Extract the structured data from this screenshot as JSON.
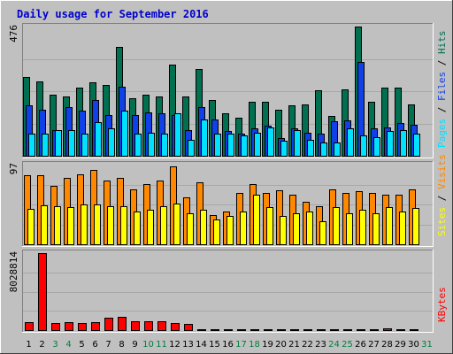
{
  "title": "Daily usage for September 2016",
  "colors": {
    "background": "#c0c0c0",
    "panel": "#c0c0c0",
    "grid": "#a8a8a8",
    "hits": "#007050",
    "files": "#1040e8",
    "pages": "#00e0ff",
    "visits": "#ff8800",
    "sites": "#ffff00",
    "kbytes": "#ff0000",
    "weekday_label": "#000000",
    "weekend_label": "#008040",
    "slash": "#000000"
  },
  "chart_data": [
    {
      "type": "bar",
      "panel": "hits-files-pages",
      "ymax_label": "476",
      "ylim": [
        0,
        476
      ],
      "right_legend": [
        "Pages",
        "Files",
        "Hits"
      ],
      "categories": [
        "1",
        "2",
        "3",
        "4",
        "5",
        "6",
        "7",
        "8",
        "9",
        "10",
        "11",
        "12",
        "13",
        "14",
        "15",
        "16",
        "17",
        "18",
        "19",
        "20",
        "21",
        "22",
        "23",
        "24",
        "25",
        "26",
        "27",
        "28",
        "29",
        "30",
        "31"
      ],
      "weekend_days": [
        "3",
        "4",
        "10",
        "11",
        "17",
        "18",
        "24",
        "25",
        "31"
      ],
      "series": [
        {
          "name": "Hits",
          "values": [
            290,
            275,
            225,
            220,
            250,
            272,
            260,
            400,
            212,
            225,
            220,
            335,
            218,
            320,
            205,
            158,
            140,
            200,
            200,
            168,
            185,
            190,
            240,
            148,
            245,
            475,
            200,
            250,
            250,
            190,
            0
          ]
        },
        {
          "name": "Files",
          "values": [
            185,
            170,
            95,
            180,
            165,
            205,
            150,
            255,
            150,
            160,
            155,
            150,
            95,
            180,
            135,
            90,
            80,
            100,
            112,
            65,
            100,
            85,
            82,
            128,
            130,
            345,
            100,
            105,
            120,
            115,
            0
          ]
        },
        {
          "name": "Pages",
          "values": [
            82,
            80,
            95,
            95,
            82,
            125,
            100,
            165,
            80,
            85,
            80,
            155,
            60,
            135,
            80,
            80,
            76,
            85,
            105,
            55,
            95,
            60,
            48,
            50,
            100,
            75,
            70,
            90,
            95,
            80,
            0
          ]
        }
      ]
    },
    {
      "type": "bar",
      "panel": "visits-sites",
      "ymax_label": "97",
      "ylim": [
        0,
        97
      ],
      "right_legend": [
        "Sites",
        "Visits"
      ],
      "categories": [
        "1",
        "2",
        "3",
        "4",
        "5",
        "6",
        "7",
        "8",
        "9",
        "10",
        "11",
        "12",
        "13",
        "14",
        "15",
        "16",
        "17",
        "18",
        "19",
        "20",
        "21",
        "22",
        "23",
        "24",
        "25",
        "26",
        "27",
        "28",
        "29",
        "30",
        "31"
      ],
      "series": [
        {
          "name": "Visits",
          "values": [
            84,
            84,
            71,
            81,
            85,
            91,
            78,
            81,
            67,
            73,
            78,
            95,
            57,
            75,
            36,
            40,
            63,
            73,
            62,
            66,
            60,
            52,
            46,
            67,
            62,
            65,
            63,
            60,
            60,
            67,
            0
          ]
        },
        {
          "name": "Sites",
          "values": [
            43,
            47,
            46,
            45,
            48,
            49,
            46,
            46,
            40,
            42,
            46,
            50,
            38,
            42,
            30,
            34,
            40,
            60,
            45,
            35,
            38,
            40,
            28,
            45,
            38,
            42,
            38,
            45,
            40,
            44,
            0
          ]
        }
      ]
    },
    {
      "type": "bar",
      "panel": "kbytes",
      "ymax_label": "8028814",
      "ylim": [
        0,
        8028814
      ],
      "right_legend": [
        "KBytes"
      ],
      "categories": [
        "1",
        "2",
        "3",
        "4",
        "5",
        "6",
        "7",
        "8",
        "9",
        "10",
        "11",
        "12",
        "13",
        "14",
        "15",
        "16",
        "17",
        "18",
        "19",
        "20",
        "21",
        "22",
        "23",
        "24",
        "25",
        "26",
        "27",
        "28",
        "29",
        "30",
        "31"
      ],
      "series": [
        {
          "name": "KBytes",
          "values": [
            800000,
            8028814,
            780000,
            800000,
            760000,
            800000,
            1250000,
            1350000,
            880000,
            900000,
            880000,
            710000,
            660000,
            60000,
            110000,
            55000,
            45000,
            65000,
            50000,
            45000,
            70000,
            110000,
            55000,
            40000,
            50000,
            60000,
            55000,
            140000,
            90000,
            60000,
            0
          ]
        }
      ]
    }
  ]
}
